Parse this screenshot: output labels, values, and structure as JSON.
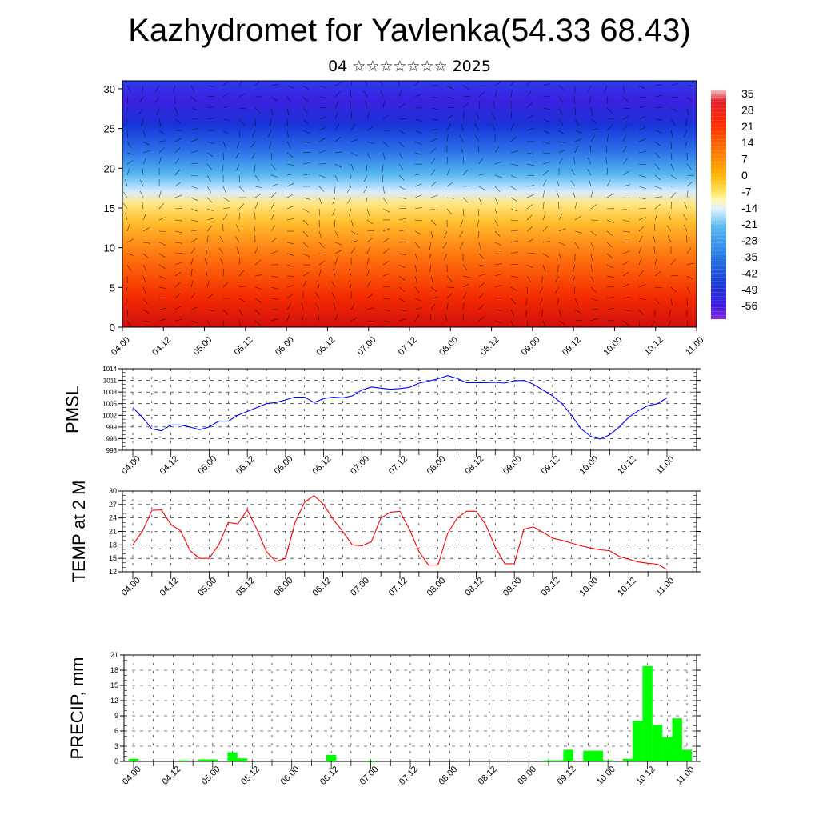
{
  "header": {
    "title": "Kazhydromet for Yavlenka(54.33 68.43)",
    "subtitle": "04 ☆☆☆☆☆☆☆ 2025"
  },
  "chart_data": [
    {
      "type": "heatmap",
      "name": "vertical-cross-section",
      "xlabel": "",
      "ylabel": "",
      "x_ticks": [
        "04.00",
        "04.12",
        "05.00",
        "05.12",
        "06.00",
        "06.12",
        "07.00",
        "07.12",
        "08.00",
        "08.12",
        "09.00",
        "09.12",
        "10.00",
        "10.12",
        "11.00"
      ],
      "y_ticks": [
        0,
        5,
        10,
        15,
        20,
        25,
        30
      ],
      "ylim": [
        0,
        31
      ],
      "colorbar_labels": [
        35,
        28,
        21,
        14,
        7,
        0,
        -7,
        -14,
        -21,
        -28,
        -35,
        -42,
        -49,
        -56
      ],
      "colors": [
        "#f7c9c9",
        "#d4001a",
        "#ff2a00",
        "#ff7a00",
        "#ffb300",
        "#ffe14d",
        "#fff6b0",
        "#cfe8ff",
        "#54b8f0",
        "#2a7ee8",
        "#1a3cd8",
        "#3a18e0",
        "#7a22e0"
      ],
      "wind_vectors": "black barbs across field",
      "grid": false
    },
    {
      "type": "line",
      "name": "pmsl",
      "ylabel": "PMSL",
      "x_ticks": [
        "04.00",
        "04.12",
        "05.00",
        "05.12",
        "06.00",
        "06.12",
        "07.00",
        "07.12",
        "08.00",
        "08.12",
        "09.00",
        "09.12",
        "10.00",
        "10.12",
        "11.00"
      ],
      "y_ticks": [
        993,
        996,
        999,
        1002,
        1005,
        1008,
        1011,
        1014
      ],
      "ylim": [
        993,
        1014
      ],
      "color": "#0000ff",
      "x": [
        0,
        3,
        6,
        9,
        12,
        15,
        18,
        21,
        24,
        27,
        30,
        33,
        36,
        39,
        42,
        45,
        48,
        51,
        54,
        57,
        60,
        63,
        66,
        69,
        72,
        75,
        78,
        81,
        84,
        87,
        90,
        93,
        96,
        99,
        102,
        105,
        108,
        111,
        114,
        117,
        120,
        123,
        126,
        129,
        132,
        135,
        138,
        141,
        144,
        147,
        150,
        153,
        156,
        159,
        162,
        165,
        168
      ],
      "values": [
        1004,
        1001.5,
        998.5,
        998,
        999.5,
        999.5,
        999,
        998.3,
        999,
        1000.5,
        1000.5,
        1002,
        1003,
        1004,
        1005,
        1005.3,
        1006,
        1006.7,
        1006.7,
        1005.3,
        1006.3,
        1006.7,
        1006.5,
        1007,
        1008.5,
        1009.3,
        1009,
        1008.7,
        1008.9,
        1009.2,
        1010.3,
        1010.8,
        1011.4,
        1012.2,
        1011.5,
        1010.4,
        1010.4,
        1010.4,
        1010.5,
        1010.3,
        1010.9,
        1011,
        1010,
        1008.5,
        1007,
        1005,
        1002,
        998.5,
        996.6,
        995.9,
        997,
        999,
        1001.5,
        1003.2,
        1004.5,
        1005,
        1006.5
      ]
    },
    {
      "type": "line",
      "name": "temp-2m",
      "ylabel": "TEMP at 2 M",
      "x_ticks": [
        "04.00",
        "04.12",
        "05.00",
        "05.12",
        "06.00",
        "06.12",
        "07.00",
        "07.12",
        "08.00",
        "08.12",
        "09.00",
        "09.12",
        "10.00",
        "10.12",
        "11.00"
      ],
      "y_ticks": [
        12,
        15,
        18,
        21,
        24,
        27,
        30
      ],
      "ylim": [
        12,
        30
      ],
      "color": "#ff0000",
      "x": [
        0,
        3,
        6,
        9,
        12,
        15,
        18,
        21,
        24,
        27,
        30,
        33,
        36,
        39,
        42,
        45,
        48,
        51,
        54,
        57,
        60,
        63,
        66,
        69,
        72,
        75,
        78,
        81,
        84,
        87,
        90,
        93,
        96,
        99,
        102,
        105,
        108,
        111,
        114,
        117,
        120,
        123,
        126,
        129,
        132,
        135,
        138,
        141,
        144,
        147,
        150,
        153,
        156,
        159,
        162,
        165,
        168
      ],
      "values": [
        18,
        21,
        25.7,
        25.8,
        22.5,
        21.2,
        16.7,
        15,
        15,
        18,
        23,
        22.7,
        25.8,
        21.5,
        16.5,
        14.3,
        15,
        23,
        27.5,
        29,
        27,
        23.7,
        21,
        18,
        17.8,
        18.7,
        24,
        25.3,
        25.5,
        21.5,
        16.5,
        13.5,
        13.5,
        20.5,
        24,
        25.5,
        25.5,
        22.5,
        17.5,
        13.8,
        13.8,
        21.5,
        22,
        20.8,
        19.5,
        19,
        18.4,
        17.8,
        17.3,
        16.9,
        16.7,
        15.4,
        14.8,
        14.2,
        13.9,
        13.7,
        12.5
      ]
    },
    {
      "type": "bar",
      "name": "precip",
      "ylabel": "PRECIP, mm",
      "x_ticks": [
        "04.00",
        "04.12",
        "05.00",
        "05.12",
        "06.00",
        "06.12",
        "07.00",
        "07.12",
        "08.00",
        "08.12",
        "09.00",
        "09.12",
        "10.00",
        "10.12",
        "11.00"
      ],
      "y_ticks": [
        0,
        3,
        6,
        9,
        12,
        15,
        18,
        21
      ],
      "ylim": [
        0,
        21
      ],
      "color": "#00ff00",
      "x": [
        0,
        3,
        6,
        9,
        12,
        15,
        18,
        21,
        24,
        27,
        30,
        33,
        36,
        39,
        42,
        45,
        48,
        51,
        54,
        57,
        60,
        63,
        66,
        69,
        72,
        75,
        78,
        81,
        84,
        87,
        90,
        93,
        96,
        99,
        102,
        105,
        108,
        111,
        114,
        117,
        120,
        123,
        126,
        129,
        132,
        135,
        138,
        141,
        144,
        147,
        150,
        153,
        156,
        159,
        162,
        165,
        168
      ],
      "values": [
        0.5,
        0,
        0,
        0,
        0,
        0.2,
        0,
        0.4,
        0.4,
        0,
        1.8,
        0.6,
        0,
        0,
        0,
        0,
        0,
        0,
        0,
        0,
        1.3,
        0,
        0,
        0,
        0.1,
        0,
        0,
        0,
        0,
        0,
        0,
        0,
        0,
        0,
        0,
        0,
        0,
        0,
        0,
        0,
        0,
        0,
        0.2,
        0.2,
        2.3,
        0,
        2.1,
        2.1,
        0.2,
        0,
        0.5,
        8,
        18.8,
        7.2,
        4.8,
        8.5,
        2.3
      ]
    }
  ]
}
